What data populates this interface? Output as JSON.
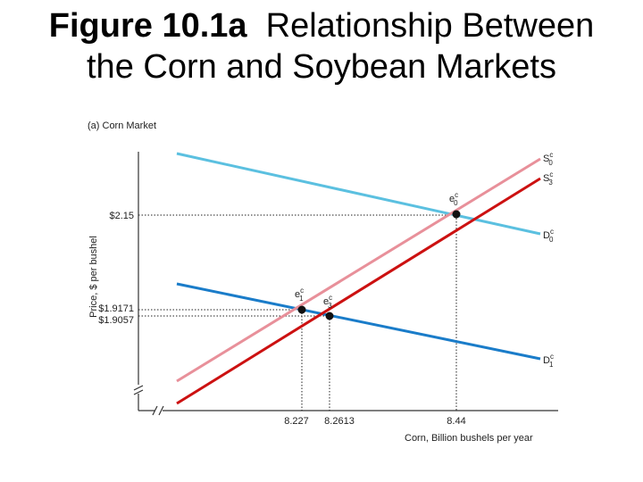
{
  "header": {
    "title_bold": "Figure 10.1a",
    "title": "Relationship Between the Corn and Soybean Markets"
  },
  "figure": {
    "panel_label": "(a) Corn Market",
    "y_axis_label": "Price, $ per bushel",
    "x_axis_label": "Corn, Billion bushels per year",
    "price_labels": [
      "$2.15",
      "$1.9171",
      "$1.9057"
    ],
    "quantity_labels": [
      "8.227",
      "8.2613",
      "8.44"
    ],
    "curves": [
      {
        "base": "S",
        "sup": "c",
        "sub": "0"
      },
      {
        "base": "S",
        "sup": "c",
        "sub": "3"
      },
      {
        "base": "D",
        "sup": "c",
        "sub": "0"
      },
      {
        "base": "D",
        "sup": "c",
        "sub": "1"
      }
    ],
    "points": [
      {
        "base": "e",
        "sup": "c",
        "sub": "0"
      },
      {
        "base": "e",
        "sup": "c",
        "sub": "1"
      },
      {
        "base": "e",
        "sup": "c",
        "sub": "3"
      }
    ]
  }
}
